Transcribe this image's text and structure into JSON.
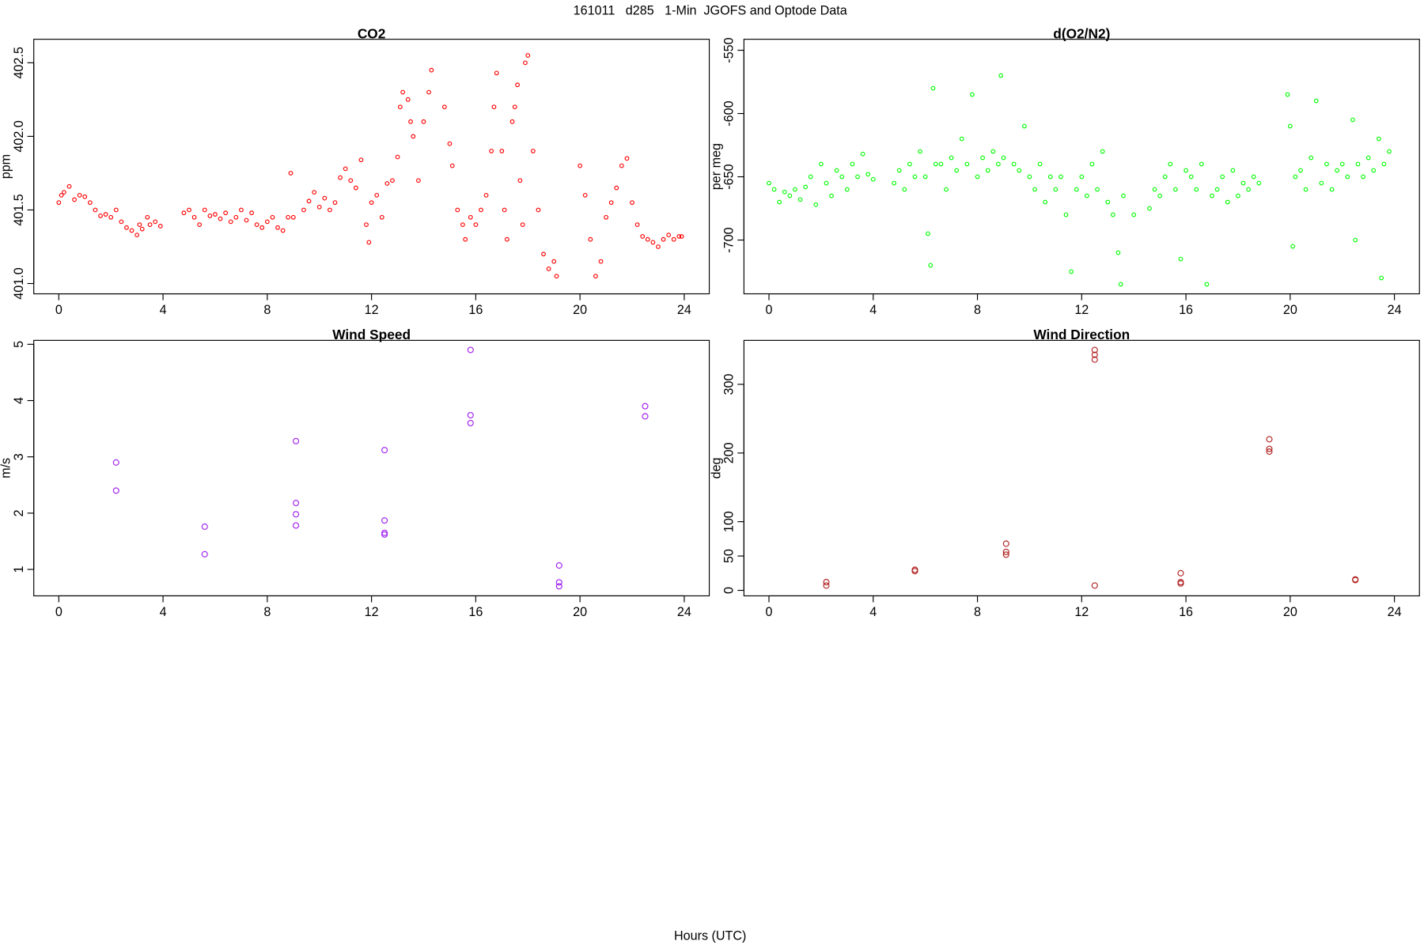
{
  "title": "161011   d285   1-Min  JGOFS and Optode Data",
  "xlabel": "Hours (UTC)",
  "chart_data": [
    {
      "type": "scatter",
      "title": "CO2",
      "ylabel": "ppm",
      "color": "#ff0000",
      "marker_size": 2,
      "xlim": [
        -0.96,
        24.96
      ],
      "xticks": [
        0,
        4,
        8,
        12,
        16,
        20,
        24
      ],
      "ylim": [
        400.93,
        402.66
      ],
      "yticks": [
        {
          "value": 401.0,
          "label": "401.0"
        },
        401.5,
        {
          "value": 402.0,
          "label": "402.0"
        },
        402.5
      ],
      "x": [
        0.0,
        0.1,
        0.2,
        0.4,
        0.6,
        0.8,
        1.0,
        1.2,
        1.4,
        1.6,
        1.8,
        2.0,
        2.2,
        2.4,
        2.6,
        2.8,
        3.0,
        3.1,
        3.2,
        3.4,
        3.5,
        3.7,
        3.9,
        4.8,
        5.0,
        5.2,
        5.4,
        5.6,
        5.8,
        6.0,
        6.2,
        6.4,
        6.6,
        6.8,
        7.0,
        7.2,
        7.4,
        7.6,
        7.8,
        8.0,
        8.2,
        8.4,
        8.6,
        8.8,
        8.9,
        9.0,
        9.4,
        9.6,
        9.8,
        10.0,
        10.2,
        10.4,
        10.6,
        10.8,
        11.0,
        11.2,
        11.4,
        11.6,
        11.8,
        11.9,
        12.0,
        12.2,
        12.4,
        12.6,
        12.8,
        13.0,
        13.1,
        13.2,
        13.4,
        13.5,
        13.6,
        13.8,
        14.0,
        14.2,
        14.3,
        14.8,
        15.0,
        15.1,
        15.3,
        15.5,
        15.6,
        15.8,
        16.0,
        16.2,
        16.4,
        16.6,
        16.7,
        16.8,
        17.0,
        17.1,
        17.2,
        17.4,
        17.5,
        17.6,
        17.7,
        17.8,
        17.9,
        18.0,
        18.2,
        18.4,
        18.6,
        18.8,
        19.0,
        19.1,
        20.0,
        20.2,
        20.4,
        20.6,
        20.8,
        21.0,
        21.2,
        21.4,
        21.6,
        21.8,
        22.0,
        22.2,
        22.4,
        22.6,
        22.8,
        23.0,
        23.2,
        23.4,
        23.6,
        23.8,
        23.9
      ],
      "values": [
        401.55,
        401.6,
        401.62,
        401.66,
        401.57,
        401.6,
        401.59,
        401.55,
        401.5,
        401.46,
        401.47,
        401.45,
        401.5,
        401.42,
        401.38,
        401.36,
        401.33,
        401.4,
        401.37,
        401.45,
        401.4,
        401.42,
        401.39,
        401.48,
        401.5,
        401.45,
        401.4,
        401.5,
        401.46,
        401.47,
        401.44,
        401.48,
        401.42,
        401.45,
        401.5,
        401.43,
        401.48,
        401.4,
        401.38,
        401.42,
        401.45,
        401.38,
        401.36,
        401.45,
        401.75,
        401.45,
        401.5,
        401.56,
        401.62,
        401.52,
        401.58,
        401.5,
        401.55,
        401.72,
        401.78,
        401.7,
        401.65,
        401.84,
        401.4,
        401.28,
        401.55,
        401.6,
        401.45,
        401.68,
        401.7,
        401.86,
        402.2,
        402.3,
        402.25,
        402.1,
        402.0,
        401.7,
        402.1,
        402.3,
        402.45,
        402.2,
        401.95,
        401.8,
        401.5,
        401.4,
        401.3,
        401.45,
        401.4,
        401.5,
        401.6,
        401.9,
        402.2,
        402.43,
        401.9,
        401.5,
        401.3,
        402.1,
        402.2,
        402.35,
        401.7,
        401.4,
        402.5,
        402.55,
        401.9,
        401.5,
        401.2,
        401.1,
        401.15,
        401.05,
        401.8,
        401.6,
        401.3,
        401.05,
        401.15,
        401.45,
        401.55,
        401.65,
        401.8,
        401.85,
        401.55,
        401.4,
        401.32,
        401.3,
        401.28,
        401.25,
        401.3,
        401.33,
        401.3,
        401.32,
        401.32
      ]
    },
    {
      "type": "scatter",
      "title": "d(O2/N2)",
      "ylabel": "per meg",
      "color": "#00ff00",
      "marker_size": 2,
      "xlim": [
        -0.96,
        24.96
      ],
      "xticks": [
        0,
        4,
        8,
        12,
        16,
        20,
        24
      ],
      "ylim": [
        -742.5,
        -541.3
      ],
      "yticks": [
        -700,
        -650,
        -600,
        -550
      ],
      "x": [
        0.0,
        0.2,
        0.4,
        0.6,
        0.8,
        1.0,
        1.2,
        1.4,
        1.6,
        1.8,
        2.0,
        2.2,
        2.4,
        2.6,
        2.8,
        3.0,
        3.2,
        3.4,
        3.6,
        3.8,
        4.0,
        4.8,
        5.0,
        5.2,
        5.4,
        5.6,
        5.8,
        6.0,
        6.1,
        6.2,
        6.3,
        6.4,
        6.6,
        6.8,
        7.0,
        7.2,
        7.4,
        7.6,
        7.8,
        8.0,
        8.2,
        8.4,
        8.6,
        8.8,
        8.9,
        9.0,
        9.4,
        9.6,
        9.8,
        10.0,
        10.2,
        10.4,
        10.6,
        10.8,
        11.0,
        11.2,
        11.4,
        11.6,
        11.8,
        12.0,
        12.2,
        12.4,
        12.6,
        12.8,
        13.0,
        13.2,
        13.4,
        13.5,
        13.6,
        14.0,
        14.6,
        14.8,
        15.0,
        15.2,
        15.4,
        15.6,
        15.8,
        16.0,
        16.2,
        16.4,
        16.6,
        16.8,
        17.0,
        17.2,
        17.4,
        17.6,
        17.8,
        18.0,
        18.2,
        18.4,
        18.6,
        18.8,
        19.9,
        20.0,
        20.1,
        20.2,
        20.4,
        20.6,
        20.8,
        21.0,
        21.2,
        21.4,
        21.6,
        21.8,
        22.0,
        22.2,
        22.4,
        22.5,
        22.6,
        22.8,
        23.0,
        23.2,
        23.4,
        23.5,
        23.6,
        23.8
      ],
      "values": [
        -655,
        -660,
        -670,
        -662,
        -665,
        -660,
        -668,
        -658,
        -650,
        -672,
        -640,
        -655,
        -665,
        -645,
        -650,
        -660,
        -640,
        -650,
        -632,
        -648,
        -652,
        -655,
        -645,
        -660,
        -640,
        -650,
        -630,
        -650,
        -695,
        -720,
        -580,
        -640,
        -640,
        -660,
        -635,
        -645,
        -620,
        -640,
        -585,
        -650,
        -635,
        -645,
        -630,
        -640,
        -570,
        -635,
        -640,
        -645,
        -610,
        -650,
        -660,
        -640,
        -670,
        -650,
        -660,
        -650,
        -680,
        -725,
        -660,
        -650,
        -665,
        -640,
        -660,
        -630,
        -670,
        -680,
        -710,
        -735,
        -665,
        -680,
        -675,
        -660,
        -665,
        -650,
        -640,
        -660,
        -715,
        -645,
        -650,
        -660,
        -640,
        -735,
        -665,
        -660,
        -650,
        -670,
        -645,
        -665,
        -655,
        -660,
        -650,
        -655,
        -585,
        -610,
        -705,
        -650,
        -645,
        -660,
        -635,
        -590,
        -655,
        -640,
        -660,
        -645,
        -640,
        -650,
        -605,
        -700,
        -640,
        -650,
        -635,
        -645,
        -620,
        -730,
        -640,
        -630
      ]
    },
    {
      "type": "scatter",
      "title": "Wind Speed",
      "ylabel": "m/s",
      "color": "#a020f0",
      "marker_size": 3,
      "xlim": [
        -0.96,
        24.96
      ],
      "xticks": [
        0,
        4,
        8,
        12,
        16,
        20,
        24
      ],
      "ylim": [
        0.53,
        5.07
      ],
      "yticks": [
        1,
        2,
        3,
        4,
        5
      ],
      "x": [
        2.2,
        2.2,
        5.6,
        5.6,
        9.1,
        9.1,
        9.1,
        9.1,
        12.5,
        12.5,
        12.5,
        12.5,
        15.8,
        15.8,
        15.8,
        19.2,
        19.2,
        19.2,
        22.5,
        22.5
      ],
      "values": [
        2.9,
        2.4,
        1.76,
        1.27,
        3.28,
        2.18,
        1.98,
        1.78,
        3.12,
        1.87,
        1.65,
        1.62,
        4.9,
        3.74,
        3.6,
        1.07,
        0.77,
        0.7,
        3.9,
        3.72
      ]
    },
    {
      "type": "scatter",
      "title": "Wind Direction",
      "ylabel": "deg",
      "color": "#b22222",
      "marker_size": 3,
      "xlim": [
        -0.96,
        24.96
      ],
      "xticks": [
        0,
        4,
        8,
        12,
        16,
        20,
        24
      ],
      "ylim": [
        -8,
        364
      ],
      "yticks": [
        0,
        50,
        100,
        200,
        300
      ],
      "x": [
        2.2,
        2.2,
        5.6,
        5.6,
        9.1,
        9.1,
        9.1,
        12.5,
        12.5,
        12.5,
        12.5,
        15.8,
        15.8,
        15.8,
        19.2,
        19.2,
        19.2,
        22.5,
        22.5
      ],
      "values": [
        12,
        7,
        30,
        28,
        68,
        56,
        52,
        350,
        343,
        336,
        7,
        25,
        12,
        10,
        220,
        206,
        202,
        16,
        15
      ]
    }
  ]
}
